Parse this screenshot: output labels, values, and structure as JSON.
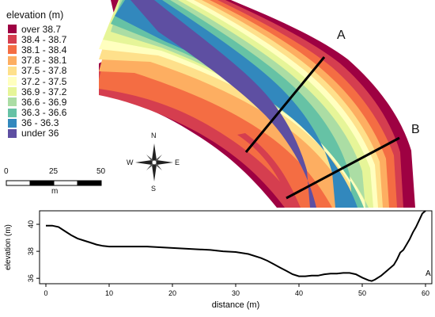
{
  "legend": {
    "title": "elevation (m)",
    "classes": [
      {
        "label": "over 38.7",
        "color": "#9e0142"
      },
      {
        "label": "38.4 - 38.7",
        "color": "#d53e4f"
      },
      {
        "label": "38.1 - 38.4",
        "color": "#f46d43"
      },
      {
        "label": "37.8 - 38.1",
        "color": "#fdae61"
      },
      {
        "label": "37.5 - 37.8",
        "color": "#fee08b"
      },
      {
        "label": "37.2 - 37.5",
        "color": "#ffffbf"
      },
      {
        "label": "36.9 - 37.2",
        "color": "#e6f598"
      },
      {
        "label": "36.6 - 36.9",
        "color": "#abdda4"
      },
      {
        "label": "36.3 - 36.6",
        "color": "#66c2a5"
      },
      {
        "label": "36 - 36.3",
        "color": "#3288bd"
      },
      {
        "label": "under 36",
        "color": "#5e4fa2"
      }
    ]
  },
  "transects": {
    "a": "A",
    "b": "B"
  },
  "compass": {
    "n": "N",
    "s": "S",
    "e": "E",
    "w": "W"
  },
  "scale_bar": {
    "ticks": [
      "0",
      "25",
      "50"
    ],
    "unit": "m"
  },
  "chart_data": {
    "type": "line",
    "title": "",
    "xlabel": "distance (m)",
    "ylabel": "elevation (m)",
    "xlim": [
      -1,
      61
    ],
    "ylim": [
      35.6,
      41.0
    ],
    "xticks": [
      0,
      10,
      20,
      30,
      40,
      50,
      60
    ],
    "yticks": [
      36,
      38,
      40
    ],
    "panel_label": "A",
    "series": [
      {
        "x": [
          0,
          1,
          2,
          3,
          4,
          5,
          6,
          7,
          8,
          9,
          10,
          12,
          14,
          16,
          18,
          20,
          22,
          24,
          26,
          28,
          30,
          32,
          34,
          35,
          36,
          37,
          38,
          39,
          40,
          41,
          42,
          43,
          44,
          45,
          46,
          47,
          48,
          49,
          50,
          51,
          51.5,
          52,
          53,
          54,
          55,
          55.5,
          56,
          56.5,
          57,
          57.5,
          58,
          58.5,
          59,
          59.5,
          60
        ],
        "y": [
          39.9,
          39.9,
          39.8,
          39.5,
          39.2,
          38.95,
          38.8,
          38.65,
          38.5,
          38.4,
          38.35,
          38.35,
          38.35,
          38.35,
          38.3,
          38.25,
          38.2,
          38.15,
          38.1,
          38.0,
          37.95,
          37.8,
          37.5,
          37.3,
          37.05,
          36.8,
          36.55,
          36.3,
          36.15,
          36.15,
          36.2,
          36.2,
          36.3,
          36.35,
          36.35,
          36.4,
          36.4,
          36.3,
          36.05,
          35.85,
          35.8,
          35.9,
          36.2,
          36.6,
          37.0,
          37.4,
          37.9,
          38.1,
          38.5,
          38.9,
          39.4,
          39.8,
          40.3,
          40.8,
          41.0
        ]
      }
    ]
  }
}
